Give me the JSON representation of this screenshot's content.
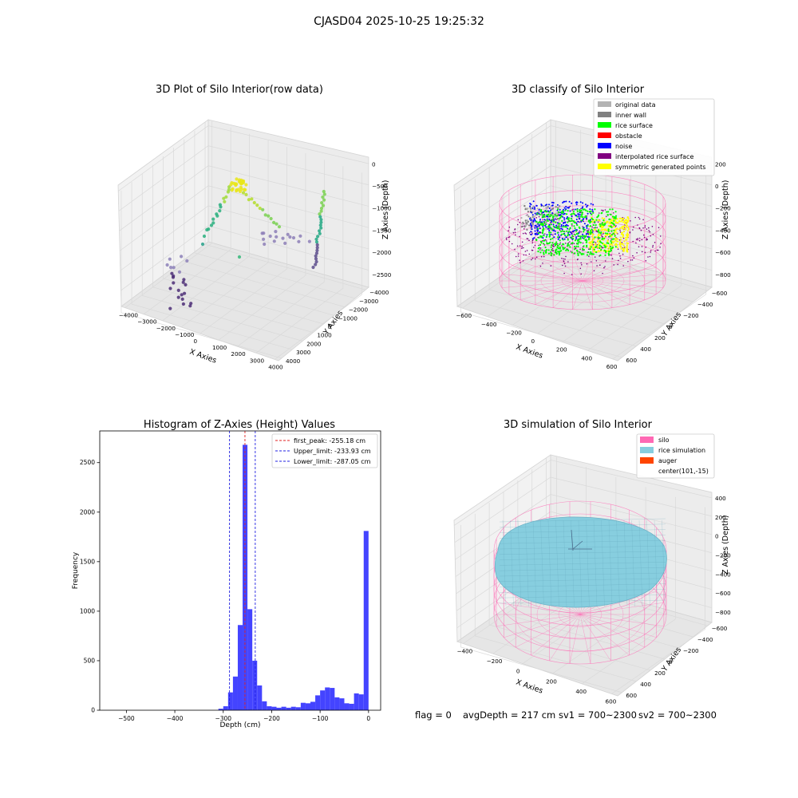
{
  "figure": {
    "suptitle": "CJASD04 2025-10-25 19:25:32",
    "footer": {
      "flag": "flag = 0",
      "avg": "avgDepth = 217 cm",
      "sv1": "sv1 = 700~2300",
      "sv2": "sv2 = 700~2300"
    }
  },
  "chart_data": [
    {
      "id": "raw",
      "type": "scatter",
      "title": "3D Plot of Silo Interior(row data)",
      "xlabel": "X Axies",
      "ylabel": "Y Axies",
      "zlabel": "Z Axies (Depth)",
      "xticks": [
        "−4000",
        "−3000",
        "−2000",
        "−1000",
        "0",
        "1000",
        "2000",
        "3000",
        "4000"
      ],
      "yticks": [
        "−4000",
        "−3000",
        "−2000",
        "−1000",
        "0",
        "1000",
        "2000",
        "3000",
        "4000"
      ],
      "zticks": [
        "0",
        "−500",
        "−1000",
        "−1500",
        "−2000",
        "−2500"
      ],
      "colors": {
        "deep": "#46307a",
        "mid": "#27a08a",
        "shallow": "#e9e619"
      }
    },
    {
      "id": "classify",
      "type": "scatter",
      "title": "3D classify of Silo Interior",
      "xlabel": "X Axies",
      "ylabel": "Y Axies",
      "zlabel": "Z Axies (Depth)",
      "xticks": [
        "−600",
        "−400",
        "−200",
        "0",
        "200",
        "400",
        "600"
      ],
      "yticks": [
        "−600",
        "−400",
        "−200",
        "0",
        "200",
        "400",
        "600"
      ],
      "zticks": [
        "200",
        "0",
        "−200",
        "−400",
        "−600",
        "−800"
      ],
      "legend": [
        {
          "label": "original data",
          "color": "#b3b3b3"
        },
        {
          "label": "inner wall",
          "color": "#808080"
        },
        {
          "label": "rice surface",
          "color": "#00ff00"
        },
        {
          "label": "obstacle",
          "color": "#ff0000"
        },
        {
          "label": "noise",
          "color": "#0000ff"
        },
        {
          "label": "interpolated rice surface",
          "color": "#800080"
        },
        {
          "label": "symmetric generated points",
          "color": "#ffff00"
        }
      ],
      "legend_loc": "upper right"
    },
    {
      "id": "hist",
      "type": "bar",
      "title": "Histogram of Z-Axies (Height) Values",
      "xlabel": "Depth (cm)",
      "ylabel": "Frequency",
      "xlim": [
        -555,
        25
      ],
      "ylim": [
        0,
        2820
      ],
      "xticks": [
        -500,
        -400,
        -300,
        -200,
        -100,
        0
      ],
      "xtick_labels": [
        "−500",
        "−400",
        "−300",
        "−200",
        "−100",
        "0"
      ],
      "yticks": [
        0,
        500,
        1000,
        1500,
        2000,
        2500
      ],
      "yticks_labels": [
        "0",
        "500",
        "1000",
        "1500",
        "2000",
        "2500"
      ],
      "bar_color": "#4444ff",
      "bins": [
        {
          "x0": -310,
          "x1": -300,
          "v": 15
        },
        {
          "x0": -300,
          "x1": -290,
          "v": 40
        },
        {
          "x0": -290,
          "x1": -280,
          "v": 180
        },
        {
          "x0": -280,
          "x1": -270,
          "v": 340
        },
        {
          "x0": -270,
          "x1": -260,
          "v": 860
        },
        {
          "x0": -260,
          "x1": -250,
          "v": 2680
        },
        {
          "x0": -250,
          "x1": -240,
          "v": 1020
        },
        {
          "x0": -240,
          "x1": -230,
          "v": 500
        },
        {
          "x0": -230,
          "x1": -220,
          "v": 250
        },
        {
          "x0": -220,
          "x1": -210,
          "v": 90
        },
        {
          "x0": -210,
          "x1": -200,
          "v": 40
        },
        {
          "x0": -200,
          "x1": -190,
          "v": 35
        },
        {
          "x0": -190,
          "x1": -180,
          "v": 25
        },
        {
          "x0": -180,
          "x1": -170,
          "v": 35
        },
        {
          "x0": -170,
          "x1": -160,
          "v": 25
        },
        {
          "x0": -160,
          "x1": -150,
          "v": 35
        },
        {
          "x0": -150,
          "x1": -140,
          "v": 30
        },
        {
          "x0": -140,
          "x1": -130,
          "v": 75
        },
        {
          "x0": -130,
          "x1": -120,
          "v": 70
        },
        {
          "x0": -120,
          "x1": -110,
          "v": 85
        },
        {
          "x0": -110,
          "x1": -100,
          "v": 150
        },
        {
          "x0": -100,
          "x1": -90,
          "v": 200
        },
        {
          "x0": -90,
          "x1": -80,
          "v": 230
        },
        {
          "x0": -80,
          "x1": -70,
          "v": 225
        },
        {
          "x0": -70,
          "x1": -60,
          "v": 130
        },
        {
          "x0": -60,
          "x1": -50,
          "v": 120
        },
        {
          "x0": -50,
          "x1": -40,
          "v": 70
        },
        {
          "x0": -40,
          "x1": -30,
          "v": 65
        },
        {
          "x0": -30,
          "x1": -20,
          "v": 170
        },
        {
          "x0": -20,
          "x1": -10,
          "v": 160
        },
        {
          "x0": -10,
          "x1": 0,
          "v": 1810
        }
      ],
      "vlines": [
        {
          "x": -255.18,
          "color": "#e02020",
          "label": "first_peak: -255.18 cm"
        },
        {
          "x": -233.93,
          "color": "#2020e0",
          "label": "Upper_limit: -233.93 cm"
        },
        {
          "x": -287.05,
          "color": "#2020e0",
          "label": "Lower_limit: -287.05 cm"
        }
      ],
      "legend_loc": "upper right"
    },
    {
      "id": "sim",
      "type": "surface",
      "title": "3D simulation of Silo Interior",
      "xlabel": "X Axies",
      "ylabel": "Y Axies",
      "zlabel": "Z Axies (Depth)",
      "xticks": [
        "−400",
        "−200",
        "0",
        "200",
        "400",
        "600"
      ],
      "yticks": [
        "−600",
        "−400",
        "−200",
        "0",
        "200",
        "400",
        "600"
      ],
      "zticks": [
        "400",
        "200",
        "0",
        "−200",
        "−400",
        "−600",
        "−800"
      ],
      "legend": [
        {
          "label": "silo",
          "color": "#ff69b4"
        },
        {
          "label": "rice simulation",
          "color": "#87cedf"
        },
        {
          "label": "auger",
          "color": "#ff4500"
        },
        {
          "label": "center(101,-15)",
          "color": ""
        }
      ],
      "legend_loc": "upper right"
    }
  ]
}
